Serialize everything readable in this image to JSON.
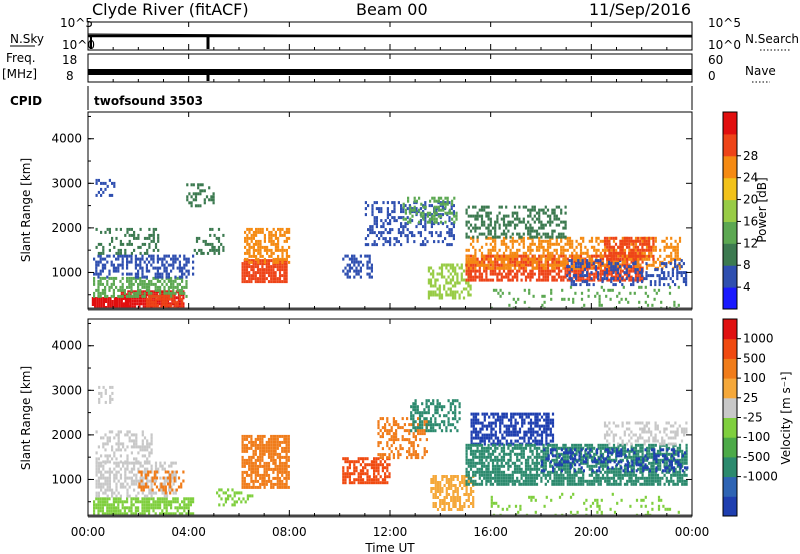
{
  "header": {
    "station": "Clyde River (fitACF)",
    "beam": "Beam 00",
    "date": "11/Sep/2016"
  },
  "top_panels": {
    "nsky_label": "N.Sky",
    "nsky_ticks": [
      "10^5",
      "10^0"
    ],
    "nsearch_label": "N.Search",
    "nsearch_ticks": [
      "10^5",
      "10^0"
    ],
    "freq_label": "Freq.",
    "freq_unit": "[MHz]",
    "freq_ticks": [
      "18",
      "8"
    ],
    "nave_label": "Nave",
    "nave_ticks": [
      "60",
      "0"
    ],
    "cpid_label": "CPID",
    "cpid_value": "twofsound 3503"
  },
  "chart_data": [
    {
      "type": "heatmap",
      "name": "Power",
      "xlabel": "",
      "ylabel": "Slant Range [km]",
      "y_ticks": [
        "1000",
        "2000",
        "3000",
        "4000"
      ],
      "ylim": [
        180,
        4600
      ],
      "colorbar": {
        "label": "Power [dB]",
        "ticks": [
          "4",
          "8",
          "12",
          "16",
          "20",
          "24",
          "28"
        ],
        "colors": [
          "#1a1aff",
          "#2f4fb0",
          "#3c7a50",
          "#5ca852",
          "#98cc46",
          "#f2c21a",
          "#f58a12",
          "#ee4418",
          "#e10e0e"
        ]
      }
    },
    {
      "type": "heatmap",
      "name": "Velocity",
      "xlabel": "Time UT",
      "ylabel": "Slant Range [km]",
      "x_ticks": [
        "00:00",
        "04:00",
        "08:00",
        "12:00",
        "16:00",
        "20:00",
        "00:00"
      ],
      "y_ticks": [
        "1000",
        "2000",
        "3000",
        "4000"
      ],
      "ylim": [
        180,
        4600
      ],
      "colorbar": {
        "label": "Velocity [m s⁻¹]",
        "ticks": [
          "1000",
          "500",
          "100",
          "25",
          "-25",
          "-100",
          "-500",
          "-1000"
        ],
        "colors": [
          "#1f3fb0",
          "#2e64b4",
          "#2c8a6e",
          "#4caa48",
          "#7fcf3e",
          "#c8c8c8",
          "#f5a83a",
          "#f07c1a",
          "#f04a10",
          "#e01010"
        ]
      }
    }
  ],
  "scatter_power": [
    {
      "t0": 0.15,
      "t1": 1.7,
      "r0": 200,
      "r1": 450,
      "c": "#e10e0e",
      "d": 0.9
    },
    {
      "t0": 1.3,
      "t1": 3.8,
      "r0": 200,
      "r1": 600,
      "c": "#e10e0e",
      "d": 0.9
    },
    {
      "t0": 0.2,
      "t1": 3.9,
      "r0": 450,
      "r1": 900,
      "c": "#5ca852",
      "d": 0.6
    },
    {
      "t0": 0.2,
      "t1": 4.2,
      "r0": 900,
      "r1": 1400,
      "c": "#2f4fb0",
      "d": 0.5
    },
    {
      "t0": 0.3,
      "t1": 2.8,
      "r0": 1400,
      "r1": 2000,
      "c": "#3c7a50",
      "d": 0.35
    },
    {
      "t0": 0.3,
      "t1": 1.0,
      "r0": 2700,
      "r1": 3100,
      "c": "#2f4fb0",
      "d": 0.4
    },
    {
      "t0": 2.3,
      "t1": 3.7,
      "r0": 200,
      "r1": 500,
      "c": "#ee4418",
      "d": 0.8
    },
    {
      "t0": 6.1,
      "t1": 7.9,
      "r0": 800,
      "r1": 1300,
      "c": "#ee4418",
      "d": 0.85
    },
    {
      "t0": 6.2,
      "t1": 8.0,
      "r0": 1200,
      "r1": 2000,
      "c": "#f58a12",
      "d": 0.6
    },
    {
      "t0": 3.9,
      "t1": 5.0,
      "r0": 2500,
      "r1": 3000,
      "c": "#3c7a50",
      "d": 0.35
    },
    {
      "t0": 4.2,
      "t1": 5.5,
      "r0": 1400,
      "r1": 2000,
      "c": "#3c7a50",
      "d": 0.3
    },
    {
      "t0": 10.1,
      "t1": 11.3,
      "r0": 900,
      "r1": 1400,
      "c": "#2f4fb0",
      "d": 0.5
    },
    {
      "t0": 11.0,
      "t1": 14.5,
      "r0": 1600,
      "r1": 2600,
      "c": "#2f4fb0",
      "d": 0.4
    },
    {
      "t0": 12.5,
      "t1": 14.6,
      "r0": 2100,
      "r1": 2700,
      "c": "#5ca852",
      "d": 0.45
    },
    {
      "t0": 13.5,
      "t1": 15.2,
      "r0": 400,
      "r1": 1200,
      "c": "#98cc46",
      "d": 0.5
    },
    {
      "t0": 15.0,
      "t1": 22.0,
      "r0": 800,
      "r1": 1400,
      "c": "#ee4418",
      "d": 0.75
    },
    {
      "t0": 15.0,
      "t1": 23.5,
      "r0": 1100,
      "r1": 1800,
      "c": "#f58a12",
      "d": 0.5
    },
    {
      "t0": 15.0,
      "t1": 19.0,
      "r0": 1800,
      "r1": 2500,
      "c": "#3c7a50",
      "d": 0.45
    },
    {
      "t0": 19.0,
      "t1": 23.8,
      "r0": 700,
      "r1": 1300,
      "c": "#2f4fb0",
      "d": 0.35
    },
    {
      "t0": 20.5,
      "t1": 22.5,
      "r0": 1300,
      "r1": 1800,
      "c": "#ee4418",
      "d": 0.6
    },
    {
      "t0": 16.0,
      "t1": 23.5,
      "r0": 200,
      "r1": 700,
      "c": "#5ca852",
      "d": 0.12
    }
  ],
  "scatter_velocity": [
    {
      "t0": 0.2,
      "t1": 4.2,
      "r0": 200,
      "r1": 600,
      "c": "#7fcf3e",
      "d": 0.75
    },
    {
      "t0": 0.3,
      "t1": 3.5,
      "r0": 600,
      "r1": 1400,
      "c": "#c8c8c8",
      "d": 0.55
    },
    {
      "t0": 0.3,
      "t1": 2.5,
      "r0": 1400,
      "r1": 2100,
      "c": "#c8c8c8",
      "d": 0.4
    },
    {
      "t0": 2.0,
      "t1": 3.8,
      "r0": 700,
      "r1": 1200,
      "c": "#f07c1a",
      "d": 0.4
    },
    {
      "t0": 0.4,
      "t1": 1.0,
      "r0": 2700,
      "r1": 3100,
      "c": "#c8c8c8",
      "d": 0.4
    },
    {
      "t0": 5.0,
      "t1": 6.5,
      "r0": 400,
      "r1": 800,
      "c": "#7fcf3e",
      "d": 0.35
    },
    {
      "t0": 6.1,
      "t1": 8.0,
      "r0": 800,
      "r1": 2000,
      "c": "#f07c1a",
      "d": 0.75
    },
    {
      "t0": 10.1,
      "t1": 12.0,
      "r0": 900,
      "r1": 1500,
      "c": "#f04a10",
      "d": 0.65
    },
    {
      "t0": 11.5,
      "t1": 13.5,
      "r0": 1500,
      "r1": 2400,
      "c": "#f07c1a",
      "d": 0.45
    },
    {
      "t0": 12.8,
      "t1": 14.8,
      "r0": 2100,
      "r1": 2800,
      "c": "#2c8a6e",
      "d": 0.5
    },
    {
      "t0": 13.6,
      "t1": 15.3,
      "r0": 300,
      "r1": 1100,
      "c": "#f5a83a",
      "d": 0.6
    },
    {
      "t0": 15.2,
      "t1": 18.5,
      "r0": 1800,
      "r1": 2500,
      "c": "#1f3fb0",
      "d": 0.65
    },
    {
      "t0": 15.0,
      "t1": 23.8,
      "r0": 900,
      "r1": 1800,
      "c": "#2c8a6e",
      "d": 0.7
    },
    {
      "t0": 18.0,
      "t1": 23.8,
      "r0": 1200,
      "r1": 1700,
      "c": "#1f3fb0",
      "d": 0.35
    },
    {
      "t0": 20.5,
      "t1": 23.8,
      "r0": 1800,
      "r1": 2300,
      "c": "#c8c8c8",
      "d": 0.4
    },
    {
      "t0": 16.0,
      "t1": 23.5,
      "r0": 200,
      "r1": 700,
      "c": "#7fcf3e",
      "d": 0.12
    }
  ]
}
